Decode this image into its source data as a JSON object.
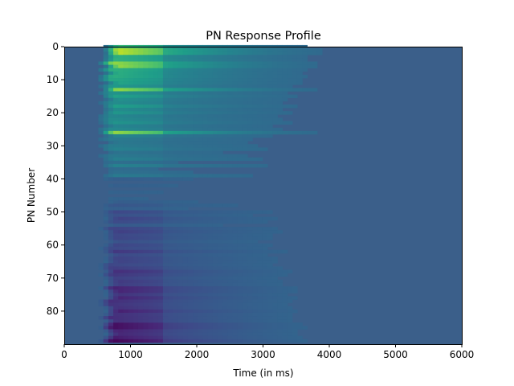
{
  "chart_data": {
    "type": "heatmap",
    "title": "PN Response Profile",
    "xlabel": "Time (in ms)",
    "ylabel": "PN Number",
    "xlim": [
      0,
      6000
    ],
    "ylim": [
      90,
      0
    ],
    "x_ticks": [
      0,
      1000,
      2000,
      3000,
      4000,
      5000,
      6000
    ],
    "y_ticks": [
      0,
      10,
      20,
      30,
      40,
      50,
      60,
      70,
      80
    ],
    "n_rows": 90,
    "colormap": "viridis",
    "baseline_color": "#3b5f8a",
    "response_onset_ms": 560,
    "response_profile": {
      "peak_rows": [
        1,
        2,
        5,
        6,
        13,
        26
      ],
      "excited_rows_range": [
        0,
        40
      ],
      "inhibited_rows_range": [
        50,
        89
      ],
      "strong_phase_end_ms": 1500,
      "decay_end_ms": 4500
    },
    "grid": false,
    "legend": "none"
  }
}
